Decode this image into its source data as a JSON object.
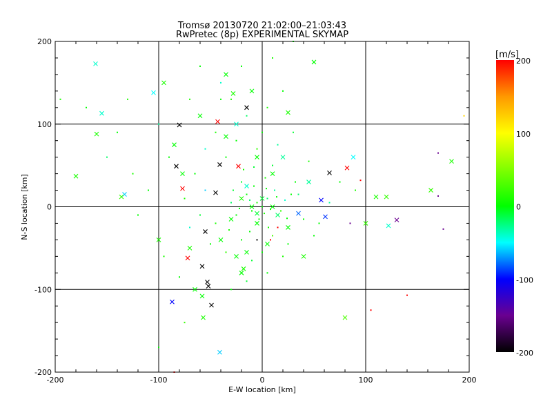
{
  "chart_data": {
    "type": "scatter",
    "title": "Tromsø 20130720 21:02:00–21:03:43",
    "subtitle": "RwPretec (8p) EXPERIMENTAL SKYMAP",
    "xlabel": "E-W location [km]",
    "ylabel": "N-S location [km]",
    "xlim": [
      -200,
      200
    ],
    "ylim": [
      -200,
      200
    ],
    "xticks": [
      "-200",
      "-100",
      "0",
      "100",
      "200"
    ],
    "yticks": [
      "-200",
      "-100",
      "0",
      "100",
      "200"
    ],
    "grid": true,
    "colorbar": {
      "label": "[m/s]",
      "range": [
        -200,
        200
      ],
      "ticks": [
        "200",
        "100",
        "0",
        "-100",
        "-200"
      ],
      "colormap_stops": [
        {
          "v": -200,
          "c": "#000000"
        },
        {
          "v": -150,
          "c": "#6a0090"
        },
        {
          "v": -100,
          "c": "#0000ff"
        },
        {
          "v": -50,
          "c": "#00ffff"
        },
        {
          "v": 0,
          "c": "#00ff00"
        },
        {
          "v": 100,
          "c": "#ffff00"
        },
        {
          "v": 150,
          "c": "#ff9900"
        },
        {
          "v": 200,
          "c": "#ff0000"
        }
      ]
    },
    "crosses": [
      [
        -161,
        173,
        -40
      ],
      [
        -155,
        113,
        -40
      ],
      [
        -105,
        138,
        -50
      ],
      [
        -95,
        150,
        10
      ],
      [
        -80,
        99,
        -200
      ],
      [
        -83,
        49,
        -200
      ],
      [
        -77,
        40,
        0
      ],
      [
        -77,
        22,
        200
      ],
      [
        -133,
        15,
        -60
      ],
      [
        -136,
        12,
        20
      ],
      [
        -180,
        37,
        10
      ],
      [
        -41,
        51,
        -200
      ],
      [
        -45,
        17,
        -200
      ],
      [
        -43,
        103,
        200
      ],
      [
        -15,
        120,
        -200
      ],
      [
        -23,
        49,
        200
      ],
      [
        -55,
        -30,
        -200
      ],
      [
        -72,
        -62,
        200
      ],
      [
        -58,
        -72,
        -200
      ],
      [
        -53,
        -91,
        -200
      ],
      [
        -52,
        -96,
        -200
      ],
      [
        -49,
        -119,
        -200
      ],
      [
        -87,
        -115,
        -100
      ],
      [
        -57,
        -134,
        10
      ],
      [
        -41,
        -176,
        -60
      ],
      [
        57,
        8,
        -100
      ],
      [
        61,
        -12,
        -90
      ],
      [
        82,
        47,
        200
      ],
      [
        65,
        41,
        -200
      ],
      [
        130,
        -16,
        -150
      ],
      [
        122,
        -23,
        -40
      ],
      [
        183,
        55,
        10
      ],
      [
        163,
        20,
        20
      ],
      [
        80,
        -134,
        30
      ],
      [
        50,
        175,
        0
      ],
      [
        40,
        -60,
        10
      ],
      [
        25,
        114,
        10
      ],
      [
        -20,
        -80,
        0
      ],
      [
        -40,
        -40,
        0
      ],
      [
        -30,
        -15,
        0
      ],
      [
        -5,
        -8,
        -10
      ],
      [
        10,
        40,
        0
      ],
      [
        -28,
        137,
        10
      ],
      [
        -35,
        160,
        0
      ],
      [
        -10,
        140,
        0
      ],
      [
        -60,
        110,
        0
      ],
      [
        -58,
        -108,
        0
      ],
      [
        -65,
        -100,
        0
      ],
      [
        -70,
        -50,
        10
      ],
      [
        -25,
        -60,
        0
      ],
      [
        -18,
        -75,
        10
      ],
      [
        -15,
        -55,
        0
      ],
      [
        5,
        -45,
        0
      ],
      [
        15,
        -10,
        -20
      ],
      [
        25,
        -25,
        0
      ],
      [
        -15,
        25,
        -40
      ],
      [
        -5,
        60,
        0
      ],
      [
        20,
        60,
        -30
      ],
      [
        -35,
        85,
        0
      ],
      [
        -25,
        100,
        -40
      ],
      [
        -85,
        75,
        0
      ],
      [
        -100,
        -40,
        10
      ],
      [
        -160,
        88,
        10
      ],
      [
        110,
        12,
        10
      ],
      [
        120,
        12,
        20
      ],
      [
        88,
        60,
        -50
      ],
      [
        100,
        -20,
        20
      ],
      [
        45,
        30,
        -30
      ],
      [
        35,
        -8,
        -80
      ],
      [
        -10,
        0,
        0
      ],
      [
        0,
        10,
        -10
      ],
      [
        -20,
        10,
        10
      ],
      [
        10,
        0,
        0
      ],
      [
        -5,
        -20,
        0
      ]
    ],
    "dots": [
      [
        0,
        0,
        0
      ],
      [
        -5,
        5,
        10
      ],
      [
        5,
        10,
        -20
      ],
      [
        -10,
        -5,
        0
      ],
      [
        8,
        -3,
        10
      ],
      [
        -15,
        15,
        0
      ],
      [
        12,
        20,
        -30
      ],
      [
        -8,
        25,
        0
      ],
      [
        3,
        35,
        10
      ],
      [
        -20,
        30,
        -10
      ],
      [
        -25,
        -10,
        0
      ],
      [
        18,
        -5,
        20
      ],
      [
        22,
        8,
        -40
      ],
      [
        -3,
        -15,
        0
      ],
      [
        6,
        -25,
        10
      ],
      [
        -12,
        -30,
        0
      ],
      [
        -30,
        5,
        -20
      ],
      [
        28,
        15,
        0
      ],
      [
        -18,
        45,
        10
      ],
      [
        10,
        50,
        -10
      ],
      [
        -35,
        60,
        0
      ],
      [
        -5,
        70,
        20
      ],
      [
        15,
        75,
        -30
      ],
      [
        -25,
        80,
        0
      ],
      [
        -45,
        90,
        10
      ],
      [
        0,
        90,
        0
      ],
      [
        -15,
        110,
        -20
      ],
      [
        5,
        120,
        10
      ],
      [
        -40,
        130,
        0
      ],
      [
        -55,
        70,
        -40
      ],
      [
        -65,
        40,
        0
      ],
      [
        -75,
        10,
        10
      ],
      [
        -60,
        -10,
        -10
      ],
      [
        -50,
        -45,
        0
      ],
      [
        -35,
        -55,
        20
      ],
      [
        -20,
        -40,
        0
      ],
      [
        -10,
        -65,
        -10
      ],
      [
        0,
        -55,
        0
      ],
      [
        10,
        -35,
        30
      ],
      [
        25,
        -45,
        0
      ],
      [
        35,
        15,
        -20
      ],
      [
        40,
        -15,
        0
      ],
      [
        45,
        55,
        10
      ],
      [
        30,
        90,
        -10
      ],
      [
        20,
        140,
        0
      ],
      [
        -70,
        130,
        10
      ],
      [
        -90,
        60,
        0
      ],
      [
        -100,
        100,
        -30
      ],
      [
        -110,
        20,
        0
      ],
      [
        -125,
        40,
        10
      ],
      [
        -140,
        90,
        0
      ],
      [
        -150,
        60,
        -20
      ],
      [
        -120,
        -10,
        0
      ],
      [
        -95,
        -60,
        10
      ],
      [
        -80,
        -85,
        0
      ],
      [
        -75,
        -140,
        20
      ],
      [
        -30,
        -100,
        0
      ],
      [
        -15,
        -90,
        -10
      ],
      [
        5,
        -80,
        0
      ],
      [
        20,
        -60,
        10
      ],
      [
        55,
        -20,
        0
      ],
      [
        65,
        5,
        -30
      ],
      [
        75,
        30,
        0
      ],
      [
        90,
        20,
        10
      ],
      [
        105,
        -125,
        200
      ],
      [
        140,
        -107,
        200
      ],
      [
        175,
        -27,
        -150
      ],
      [
        170,
        13,
        -150
      ],
      [
        170,
        65,
        -150
      ],
      [
        195,
        110,
        120
      ],
      [
        -195,
        130,
        10
      ],
      [
        -170,
        120,
        0
      ],
      [
        -130,
        130,
        10
      ],
      [
        -100,
        -170,
        0
      ],
      [
        -85,
        -200,
        200
      ],
      [
        -60,
        170,
        0
      ],
      [
        -40,
        150,
        -40
      ],
      [
        -20,
        170,
        0
      ],
      [
        10,
        180,
        10
      ],
      [
        30,
        200,
        0
      ],
      [
        -30,
        130,
        10
      ],
      [
        -55,
        20,
        -60
      ],
      [
        -45,
        -20,
        10
      ],
      [
        -70,
        -25,
        -40
      ],
      [
        50,
        -35,
        0
      ],
      [
        95,
        32,
        200
      ],
      [
        85,
        -20,
        -150
      ],
      [
        15,
        -25,
        200
      ],
      [
        -5,
        -40,
        -200
      ],
      [
        8,
        -40,
        200
      ],
      [
        -22,
        -2,
        0
      ],
      [
        -28,
        20,
        -10
      ],
      [
        2,
        -8,
        10
      ],
      [
        14,
        12,
        0
      ],
      [
        -12,
        8,
        -20
      ],
      [
        24,
        -14,
        0
      ],
      [
        -32,
        -28,
        10
      ],
      [
        32,
        30,
        0
      ],
      [
        -8,
        48,
        -10
      ],
      [
        4,
        22,
        0
      ]
    ]
  }
}
